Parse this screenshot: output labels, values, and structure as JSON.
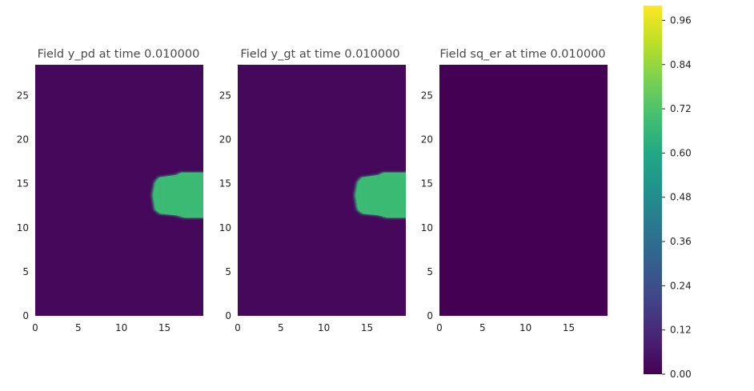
{
  "chart_data": [
    {
      "type": "heatmap",
      "title": "Field y_pd at time 0.010000",
      "xlim": [
        0,
        19.5
      ],
      "ylim": [
        0,
        28.5
      ],
      "xticks": [
        "0",
        "5",
        "10",
        "15"
      ],
      "yticks": [
        "0",
        "5",
        "10",
        "15",
        "20",
        "25"
      ],
      "background_value": 0.02,
      "blob": {
        "x_start": 13.5,
        "x_end": 19.5,
        "y_center": 13.7,
        "y_half_height": 2.3,
        "value": 0.68
      }
    },
    {
      "type": "heatmap",
      "title": "Field y_gt at time 0.010000",
      "xlim": [
        0,
        19.5
      ],
      "ylim": [
        0,
        28.5
      ],
      "xticks": [
        "0",
        "5",
        "10",
        "15"
      ],
      "yticks": [
        "0",
        "5",
        "10",
        "15",
        "20",
        "25"
      ],
      "background_value": 0.02,
      "blob": {
        "x_start": 13.5,
        "x_end": 19.5,
        "y_center": 13.7,
        "y_half_height": 2.3,
        "value": 0.68
      }
    },
    {
      "type": "heatmap",
      "title": "Field sq_er at time 0.010000",
      "xlim": [
        0,
        19.5
      ],
      "ylim": [
        0,
        28.5
      ],
      "xticks": [
        "0",
        "5",
        "10",
        "15"
      ],
      "yticks": [
        "0",
        "5",
        "10",
        "15",
        "20",
        "25"
      ],
      "background_value": 0.0
    }
  ],
  "colorbar": {
    "colormap": "viridis",
    "min": 0.0,
    "max": 1.0,
    "ticks": [
      0.0,
      0.12,
      0.24,
      0.36,
      0.48,
      0.6,
      0.72,
      0.84,
      0.96
    ],
    "tick_labels": [
      "0.00",
      "0.12",
      "0.24",
      "0.36",
      "0.48",
      "0.60",
      "0.72",
      "0.84",
      "0.96"
    ]
  },
  "colors": {
    "background_cell": "#450d54",
    "blob_fill": "#2ab07f",
    "blob_core": "#3bbb75"
  }
}
